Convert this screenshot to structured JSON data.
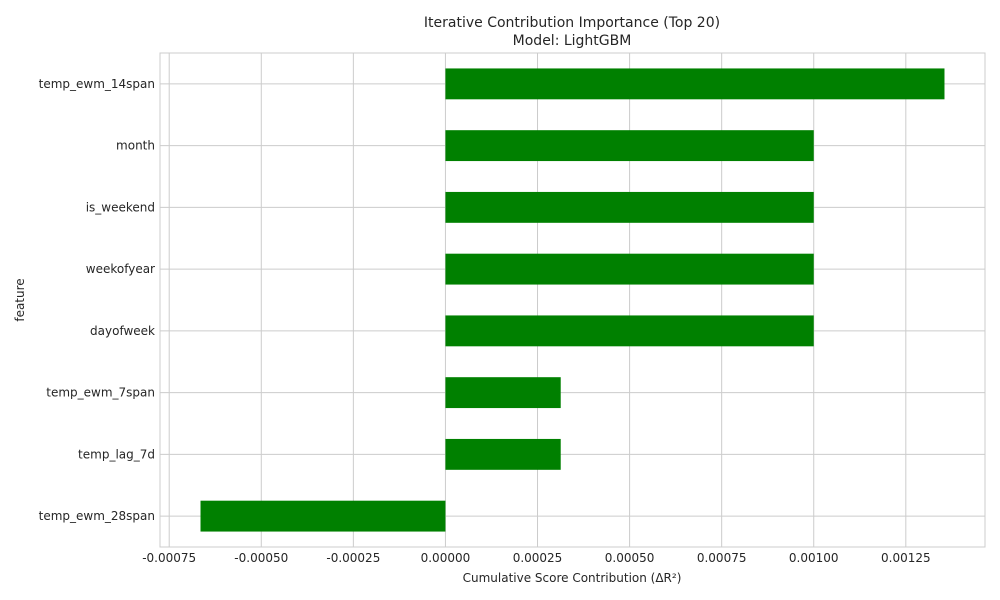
{
  "chart_data": {
    "type": "bar",
    "orientation": "horizontal",
    "title": "Iterative Contribution Importance (Top 20)",
    "subtitle": "Model: LightGBM",
    "xlabel": "Cumulative Score Contribution (ΔR²)",
    "ylabel": "feature",
    "categories": [
      "temp_ewm_14span",
      "month",
      "is_weekend",
      "weekofyear",
      "dayofweek",
      "temp_ewm_7span",
      "temp_lag_7d",
      "temp_ewm_28span"
    ],
    "values": [
      0.001355,
      0.001,
      0.001,
      0.001,
      0.001,
      0.000313,
      0.000313,
      -0.000665
    ],
    "xlim": [
      -0.000775,
      0.001465
    ],
    "xticks": [
      -0.00075,
      -0.0005,
      -0.00025,
      0.0,
      0.00025,
      0.0005,
      0.00075,
      0.001,
      0.00125
    ],
    "xtick_labels": [
      "-0.00075",
      "-0.00050",
      "-0.00025",
      "0.00000",
      "0.00025",
      "0.00050",
      "0.00075",
      "0.00100",
      "0.00125"
    ],
    "bar_color": "#008000",
    "grid": true,
    "legend": "none"
  }
}
